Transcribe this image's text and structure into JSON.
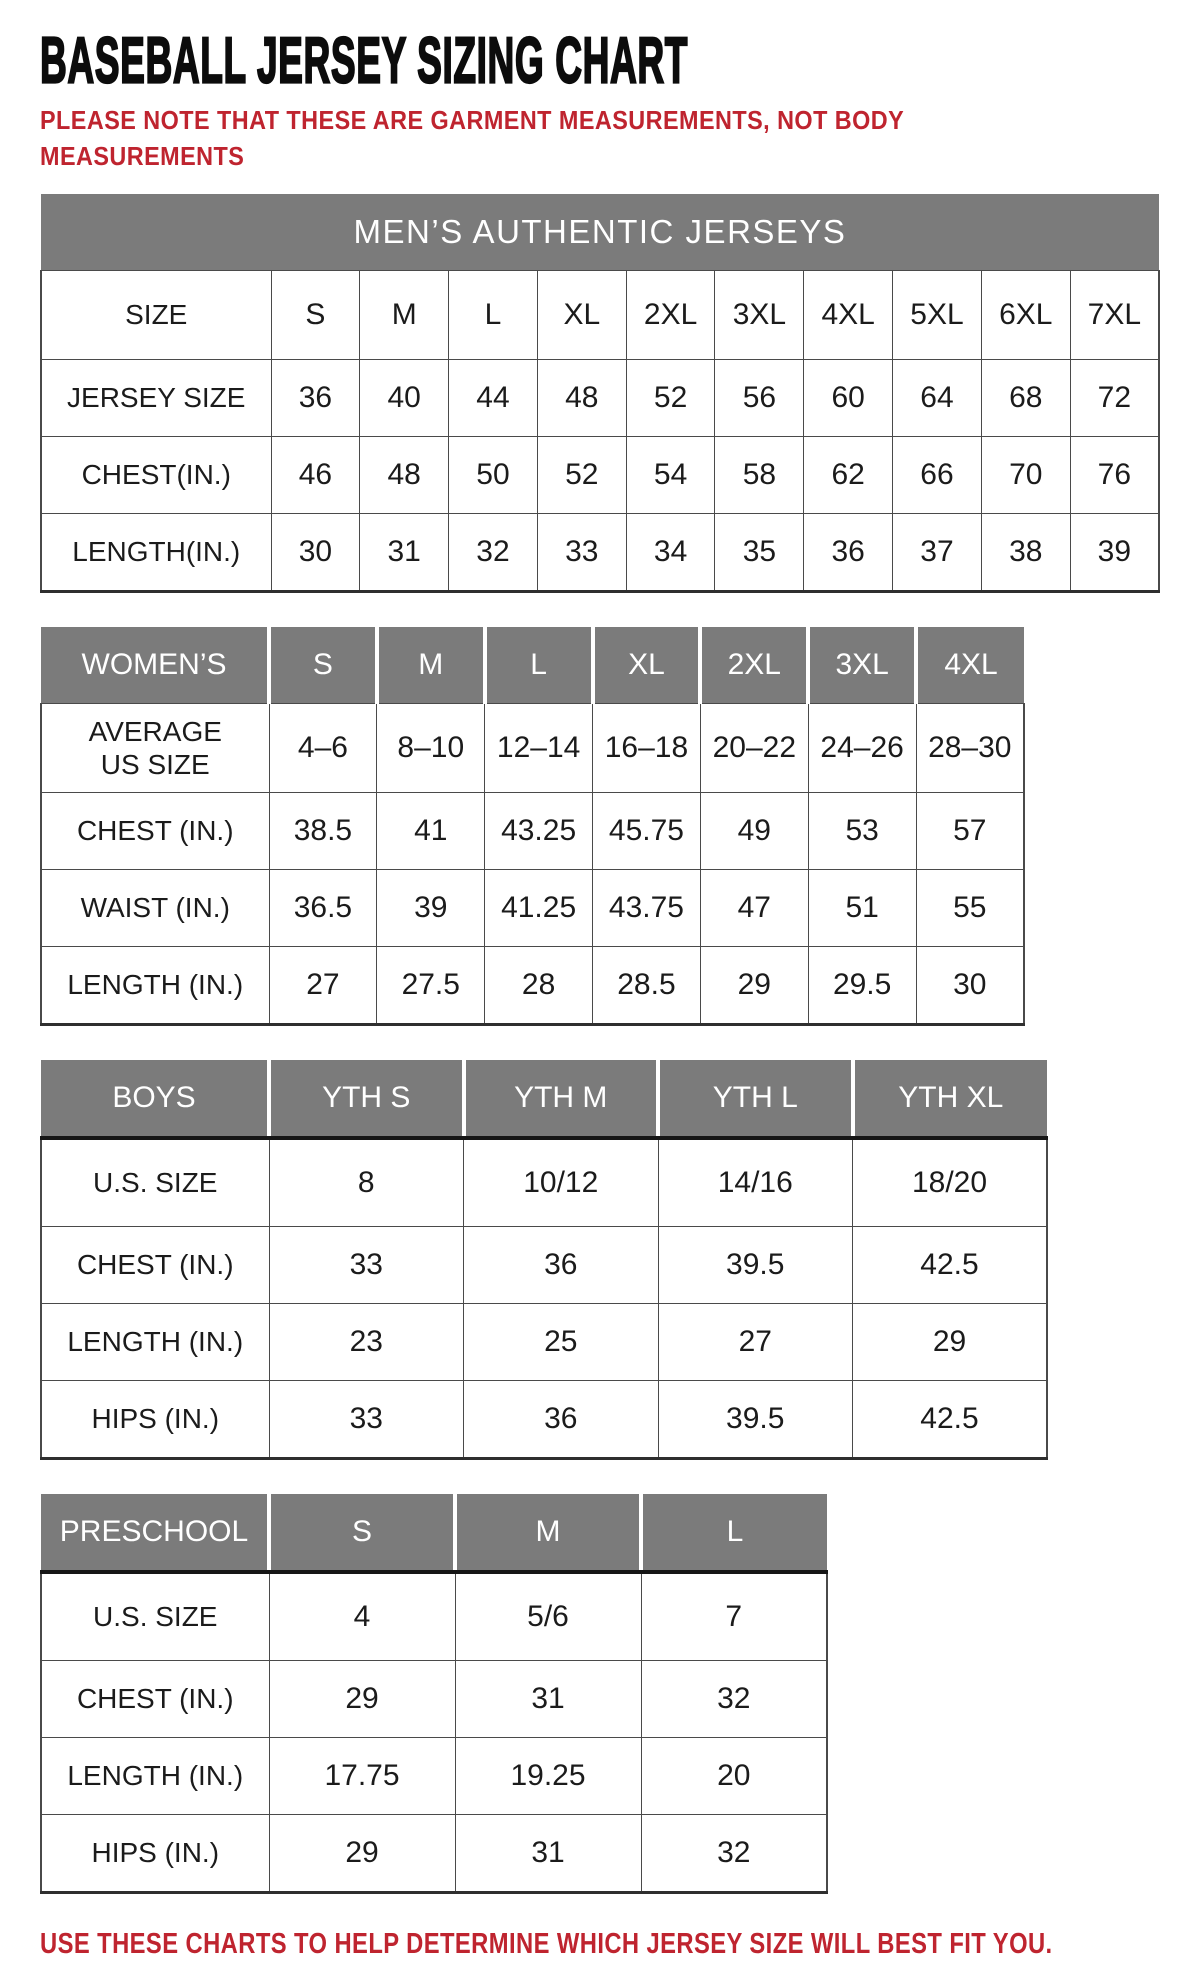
{
  "page": {
    "title": "BASEBALL JERSEY SIZING CHART",
    "note_lines": [
      "PLEASE NOTE THAT THESE ARE GARMENT MEASUREMENTS, NOT BODY",
      "MEASUREMENTS"
    ],
    "footer": "USE THESE CHARTS TO HELP DETERMINE WHICH JERSEY SIZE WILL BEST FIT YOU.",
    "colors": {
      "accent_red": "#bf242f",
      "header_gray": "#7b7b7b",
      "grid_line": "#4a4a4a",
      "text_black": "#1b1b1b"
    }
  },
  "chart_data": [
    {
      "type": "table",
      "name": "mens",
      "banner": "MEN’S AUTHENTIC JERSEYS",
      "rows": [
        {
          "label": "SIZE",
          "values": [
            "S",
            "M",
            "L",
            "XL",
            "2XL",
            "3XL",
            "4XL",
            "5XL",
            "6XL",
            "7XL"
          ]
        },
        {
          "label": "JERSEY SIZE",
          "values": [
            "36",
            "40",
            "44",
            "48",
            "52",
            "56",
            "60",
            "64",
            "68",
            "72"
          ]
        },
        {
          "label": "CHEST(IN.)",
          "values": [
            "46",
            "48",
            "50",
            "52",
            "54",
            "58",
            "62",
            "66",
            "70",
            "76"
          ]
        },
        {
          "label": "LENGTH(IN.)",
          "values": [
            "30",
            "31",
            "32",
            "33",
            "34",
            "35",
            "36",
            "37",
            "38",
            "39"
          ]
        }
      ]
    },
    {
      "type": "table",
      "name": "womens",
      "corner": "WOMEN’S",
      "columns": [
        "S",
        "M",
        "L",
        "XL",
        "2XL",
        "3XL",
        "4XL"
      ],
      "rows": [
        {
          "label": "AVERAGE\nUS SIZE",
          "values": [
            "4–6",
            "8–10",
            "12–14",
            "16–18",
            "20–22",
            "24–26",
            "28–30"
          ]
        },
        {
          "label": "CHEST (IN.)",
          "values": [
            "38.5",
            "41",
            "43.25",
            "45.75",
            "49",
            "53",
            "57"
          ]
        },
        {
          "label": "WAIST (IN.)",
          "values": [
            "36.5",
            "39",
            "41.25",
            "43.75",
            "47",
            "51",
            "55"
          ]
        },
        {
          "label": "LENGTH (IN.)",
          "values": [
            "27",
            "27.5",
            "28",
            "28.5",
            "29",
            "29.5",
            "30"
          ]
        }
      ]
    },
    {
      "type": "table",
      "name": "boys",
      "corner": "BOYS",
      "columns": [
        "YTH S",
        "YTH M",
        "YTH L",
        "YTH XL"
      ],
      "rows": [
        {
          "label": "U.S. SIZE",
          "values": [
            "8",
            "10/12",
            "14/16",
            "18/20"
          ]
        },
        {
          "label": "CHEST (IN.)",
          "values": [
            "33",
            "36",
            "39.5",
            "42.5"
          ]
        },
        {
          "label": "LENGTH (IN.)",
          "values": [
            "23",
            "25",
            "27",
            "29"
          ]
        },
        {
          "label": "HIPS (IN.)",
          "values": [
            "33",
            "36",
            "39.5",
            "42.5"
          ]
        }
      ]
    },
    {
      "type": "table",
      "name": "preschool",
      "corner": "PRESCHOOL",
      "columns": [
        "S",
        "M",
        "L"
      ],
      "rows": [
        {
          "label": "U.S. SIZE",
          "values": [
            "4",
            "5/6",
            "7"
          ]
        },
        {
          "label": "CHEST (IN.)",
          "values": [
            "29",
            "31",
            "32"
          ]
        },
        {
          "label": "LENGTH (IN.)",
          "values": [
            "17.75",
            "19.25",
            "20"
          ]
        },
        {
          "label": "HIPS (IN.)",
          "values": [
            "29",
            "31",
            "32"
          ]
        }
      ]
    }
  ]
}
